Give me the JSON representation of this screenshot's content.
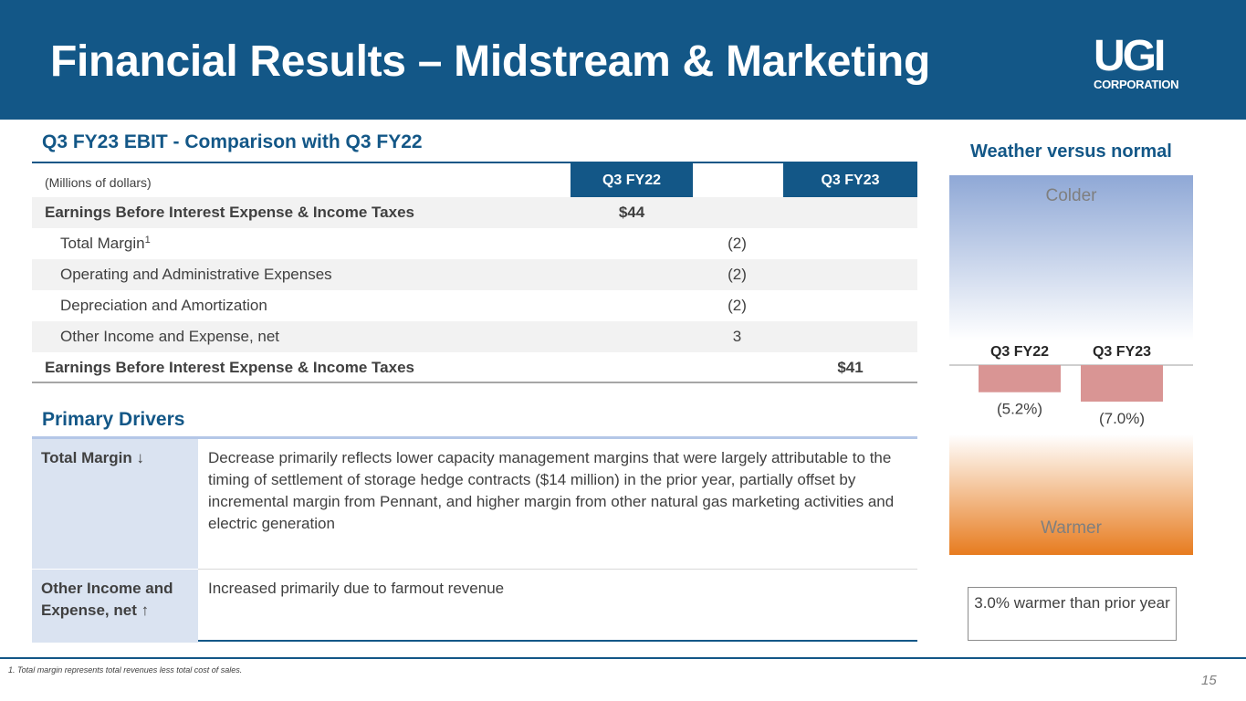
{
  "header": {
    "title": "Financial Results – Midstream & Marketing",
    "logo_main": "UGI",
    "logo_sub": "CORPORATION"
  },
  "ebit": {
    "title": "Q3 FY23 EBIT - Comparison with Q3 FY22",
    "units_label": "(Millions of dollars)",
    "col_q3fy22": "Q3 FY22",
    "col_q3fy23": "Q3 FY23",
    "rows": [
      {
        "label": "Earnings Before Interest Expense & Income Taxes",
        "q3fy22": "$44",
        "change": "",
        "q3fy23": ""
      },
      {
        "label": "Total Margin",
        "sup": "1",
        "q3fy22": "",
        "change": "(2)",
        "q3fy23": ""
      },
      {
        "label": "Operating and Administrative Expenses",
        "q3fy22": "",
        "change": "(2)",
        "q3fy23": ""
      },
      {
        "label": "Depreciation and Amortization",
        "q3fy22": "",
        "change": "(2)",
        "q3fy23": ""
      },
      {
        "label": "Other Income and Expense, net",
        "q3fy22": "",
        "change": "3",
        "q3fy23": ""
      },
      {
        "label": "Earnings Before Interest Expense & Income Taxes",
        "q3fy22": "",
        "change": "",
        "q3fy23": "$41"
      }
    ]
  },
  "drivers": {
    "title": "Primary Drivers",
    "items": [
      {
        "label": "Total Margin ↓",
        "text": "Decrease primarily reflects lower capacity management margins that were largely attributable to the timing of settlement of storage hedge contracts ($14 million) in the prior year, partially offset by incremental margin from Pennant, and higher margin from other natural gas marketing activities and electric generation"
      },
      {
        "label": "Other Income and Expense, net ↑",
        "text": "Increased primarily due to farmout revenue"
      }
    ]
  },
  "weather": {
    "title": "Weather versus normal",
    "colder_label": "Colder",
    "warmer_label": "Warmer",
    "note": "3.0% warmer than prior year",
    "bar_color": "#d99594"
  },
  "chart_data": {
    "type": "bar",
    "title": "Weather versus normal",
    "categories": [
      "Q3 FY22",
      "Q3 FY23"
    ],
    "values": [
      -5.2,
      -7.0
    ],
    "value_labels": [
      "(5.2%)",
      "(7.0%)"
    ],
    "ylabel": "",
    "grid": false
  },
  "footer": {
    "footnote": "1. Total margin represents total revenues less total cost of sales.",
    "page": "15"
  }
}
